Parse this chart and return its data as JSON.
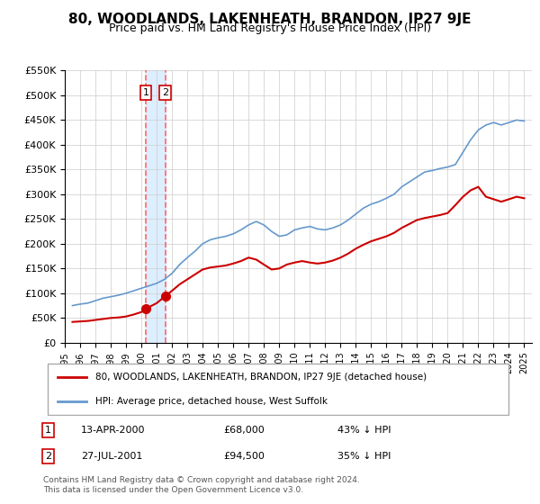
{
  "title": "80, WOODLANDS, LAKENHEATH, BRANDON, IP27 9JE",
  "subtitle": "Price paid vs. HM Land Registry's House Price Index (HPI)",
  "legend_line1": "80, WOODLANDS, LAKENHEATH, BRANDON, IP27 9JE (detached house)",
  "legend_line2": "HPI: Average price, detached house, West Suffolk",
  "sale1_label": "1",
  "sale1_date": "13-APR-2000",
  "sale1_price": "£68,000",
  "sale1_hpi": "43% ↓ HPI",
  "sale1_x": 2000.28,
  "sale1_y": 68000,
  "sale2_label": "2",
  "sale2_date": "27-JUL-2001",
  "sale2_price": "£94,500",
  "sale2_hpi": "35% ↓ HPI",
  "sale2_x": 2001.57,
  "sale2_y": 94500,
  "red_color": "#cc0000",
  "blue_color": "#6699cc",
  "vline_color": "#ff6666",
  "highlight_color": "#ddeeff",
  "grid_color": "#cccccc",
  "footer": "Contains HM Land Registry data © Crown copyright and database right 2024.\nThis data is licensed under the Open Government Licence v3.0.",
  "ylim": [
    0,
    550000
  ],
  "xlim": [
    1995,
    2025.5
  ],
  "yticks": [
    0,
    50000,
    100000,
    150000,
    200000,
    250000,
    300000,
    350000,
    400000,
    450000,
    500000,
    550000
  ],
  "ytick_labels": [
    "£0",
    "£50K",
    "£100K",
    "£150K",
    "£200K",
    "£250K",
    "£300K",
    "£350K",
    "£400K",
    "£450K",
    "£500K",
    "£550K"
  ]
}
